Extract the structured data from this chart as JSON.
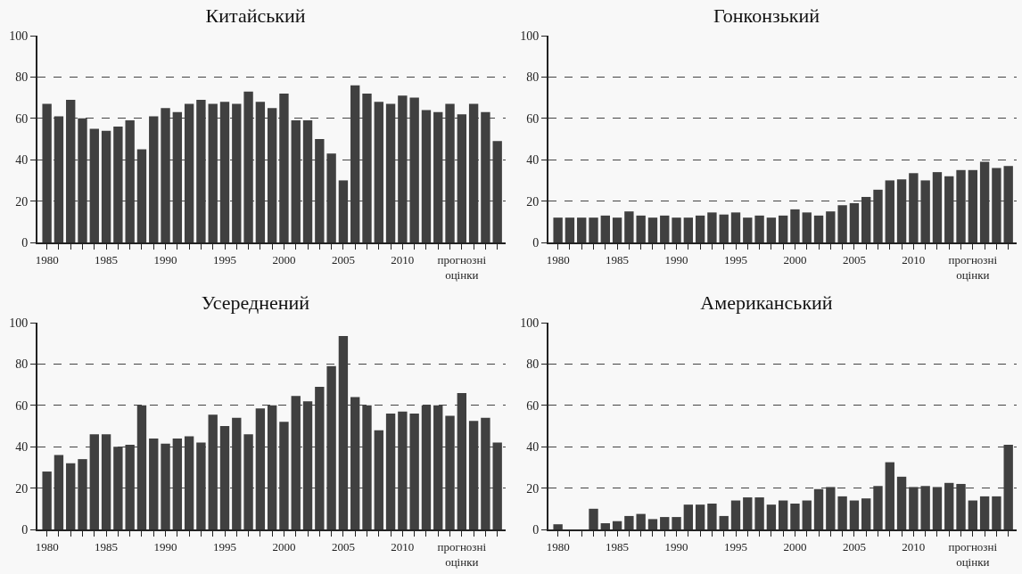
{
  "chart_data": [
    {
      "type": "bar",
      "title": "Китайський",
      "categories": [
        "1980",
        null,
        null,
        null,
        null,
        "1985",
        null,
        null,
        null,
        null,
        "1990",
        null,
        null,
        null,
        null,
        "1995",
        null,
        null,
        null,
        null,
        "2000",
        null,
        null,
        null,
        null,
        "2005",
        null,
        null,
        null,
        null,
        "2010",
        null,
        null,
        null,
        null,
        "прогнозні оцінки",
        null,
        null,
        null
      ],
      "values": [
        67,
        61,
        69,
        60,
        55,
        54,
        56,
        59,
        45,
        61,
        65,
        63,
        67,
        69,
        67,
        68,
        67,
        73,
        68,
        65,
        72,
        59,
        59,
        50,
        43,
        30,
        76,
        72,
        68,
        67,
        71,
        70,
        64,
        63,
        67,
        62,
        67,
        63,
        49
      ],
      "color": "#404040",
      "ylim": [
        0,
        100
      ],
      "yticks": [
        0,
        20,
        40,
        60,
        80,
        100
      ],
      "grid": "y"
    },
    {
      "type": "bar",
      "title": "Гонконзький",
      "categories": [
        "1980",
        null,
        null,
        null,
        null,
        "1985",
        null,
        null,
        null,
        null,
        "1990",
        null,
        null,
        null,
        null,
        "1995",
        null,
        null,
        null,
        null,
        "2000",
        null,
        null,
        null,
        null,
        "2005",
        null,
        null,
        null,
        null,
        "2010",
        null,
        null,
        null,
        null,
        "прогнозні оцінки",
        null,
        null,
        null
      ],
      "values": [
        12,
        12,
        12,
        12,
        13,
        12,
        15,
        13,
        12,
        13,
        12,
        12,
        13,
        14.5,
        13.5,
        14.5,
        12,
        13,
        12,
        13,
        16,
        14.5,
        13,
        15,
        18,
        19,
        22,
        25.5,
        30,
        30.5,
        33.5,
        30,
        34,
        32,
        35,
        35,
        39,
        36,
        37
      ],
      "color": "#404040",
      "ylim": [
        0,
        100
      ],
      "yticks": [
        0,
        20,
        40,
        60,
        80,
        100
      ],
      "grid": "y"
    },
    {
      "type": "bar",
      "title": "Усереднений",
      "categories": [
        "1980",
        null,
        null,
        null,
        null,
        "1985",
        null,
        null,
        null,
        null,
        "1990",
        null,
        null,
        null,
        null,
        "1995",
        null,
        null,
        null,
        null,
        "2000",
        null,
        null,
        null,
        null,
        "2005",
        null,
        null,
        null,
        null,
        "2010",
        null,
        null,
        null,
        null,
        "прогнозні оцінки",
        null,
        null,
        null
      ],
      "values": [
        28,
        36,
        32,
        34,
        46,
        46,
        40,
        41,
        60,
        44,
        41.5,
        44,
        45,
        42,
        55.5,
        50,
        54,
        46,
        58.5,
        60,
        52,
        64.5,
        62,
        69,
        79,
        93.5,
        64,
        60,
        48,
        56,
        57,
        56,
        60,
        60,
        55,
        66,
        52.5,
        54,
        42
      ],
      "color": "#404040",
      "ylim": [
        0,
        100
      ],
      "yticks": [
        0,
        20,
        40,
        60,
        80,
        100
      ],
      "grid": "y"
    },
    {
      "type": "bar",
      "title": "Американський",
      "categories": [
        "1980",
        null,
        null,
        null,
        null,
        "1985",
        null,
        null,
        null,
        null,
        "1990",
        null,
        null,
        null,
        null,
        "1995",
        null,
        null,
        null,
        null,
        "2000",
        null,
        null,
        null,
        null,
        "2005",
        null,
        null,
        null,
        null,
        "2010",
        null,
        null,
        null,
        null,
        "прогнозні оцінки",
        null,
        null,
        null
      ],
      "values": [
        2.5,
        0,
        0,
        10,
        3,
        4,
        6.5,
        7.5,
        5,
        6,
        6,
        12,
        12,
        12.5,
        6.5,
        14,
        15.5,
        15.5,
        12,
        14,
        12.5,
        14,
        19.5,
        20.5,
        16,
        14,
        15,
        21,
        32.5,
        25.5,
        20.5,
        21,
        20.5,
        22.5,
        22,
        14,
        16,
        16,
        41
      ],
      "color": "#404040",
      "ylim": [
        0,
        100
      ],
      "yticks": [
        0,
        20,
        40,
        60,
        80,
        100
      ],
      "grid": "y"
    }
  ]
}
